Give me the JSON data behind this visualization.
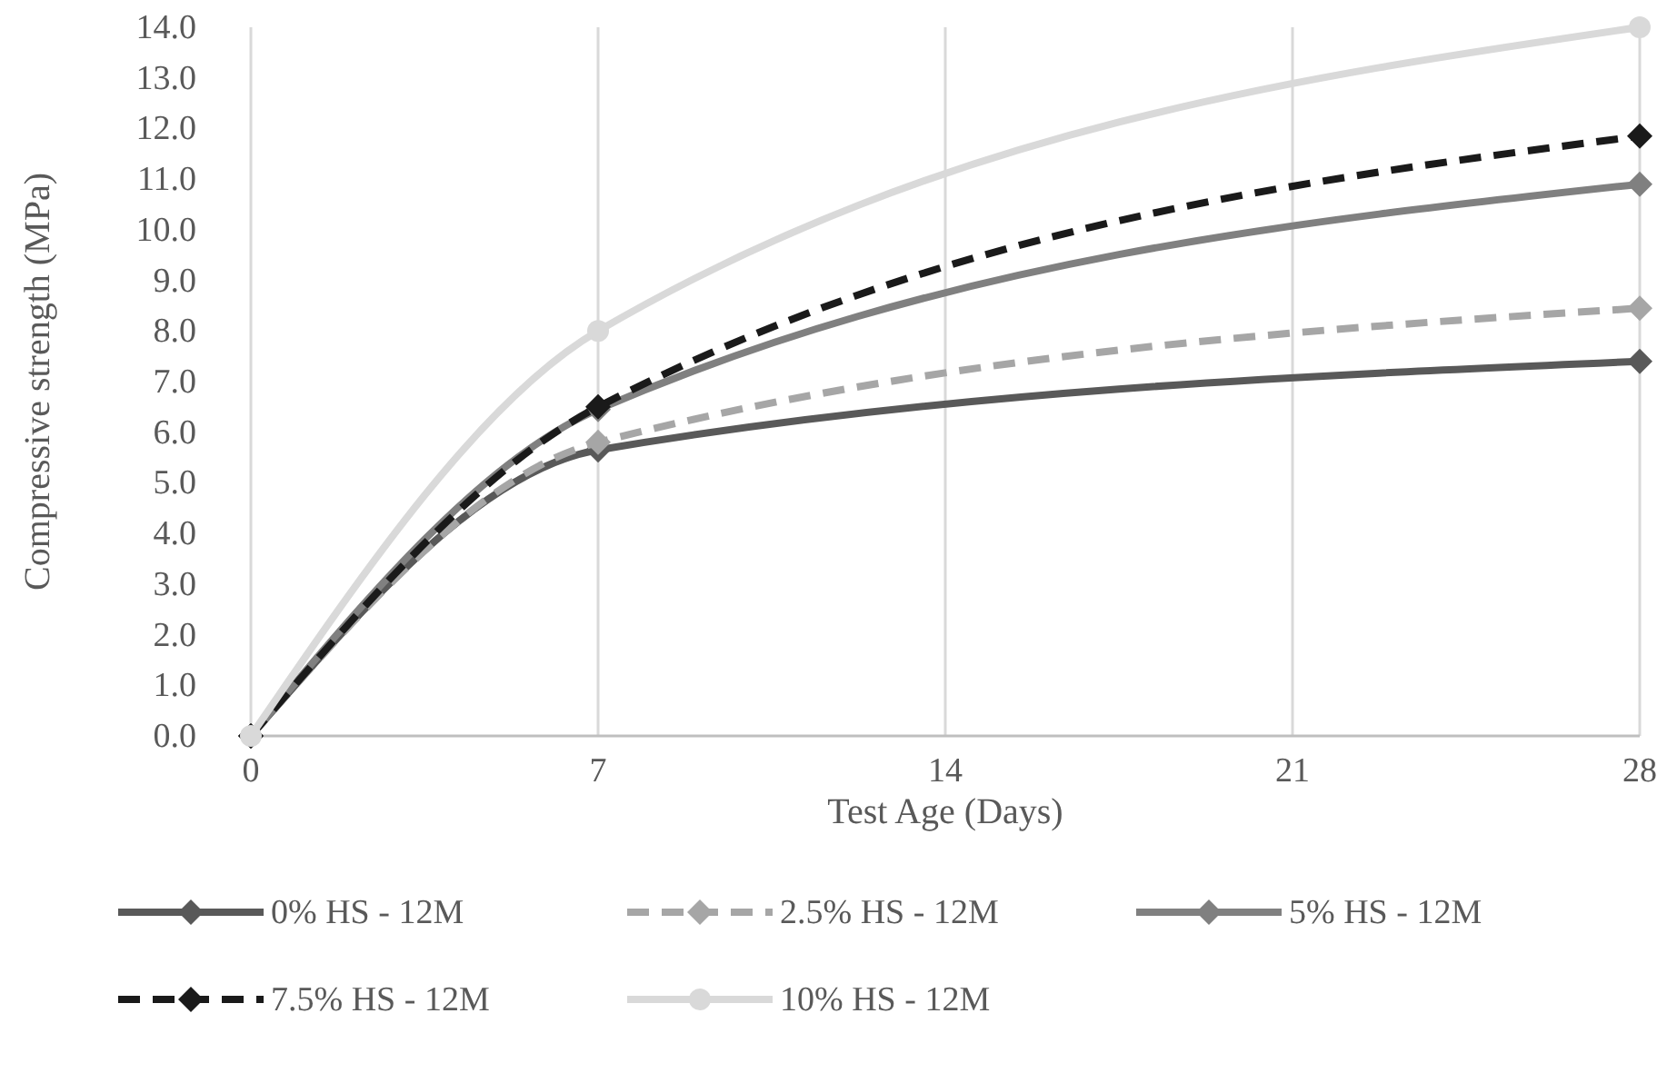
{
  "chart_data": {
    "type": "line",
    "xlabel": "Test Age (Days)",
    "ylabel": "Compressive strength (MPa)",
    "x": [
      0,
      7,
      28
    ],
    "xlim": [
      0,
      28
    ],
    "xticks": [
      0,
      7,
      14,
      21,
      28
    ],
    "ylim": [
      0,
      14
    ],
    "yticks": [
      {
        "value": 0,
        "label": "0.0"
      },
      {
        "value": 1,
        "label": "1.0"
      },
      {
        "value": 2,
        "label": "2.0"
      },
      {
        "value": 3,
        "label": "3.0"
      },
      {
        "value": 4,
        "label": "4.0"
      },
      {
        "value": 5,
        "label": "5.0"
      },
      {
        "value": 6,
        "label": "6.0"
      },
      {
        "value": 7,
        "label": "7.0"
      },
      {
        "value": 8,
        "label": "8.0"
      },
      {
        "value": 9,
        "label": "9.0"
      },
      {
        "value": 10,
        "label": "10.0"
      },
      {
        "value": 11,
        "label": "11.0"
      },
      {
        "value": 12,
        "label": "12.0"
      },
      {
        "value": 13,
        "label": "13.0"
      },
      {
        "value": 14,
        "label": "14.0"
      }
    ],
    "grid": "x",
    "legend": "bottom",
    "series": [
      {
        "name": "0% HS - 12M",
        "color": "#595959",
        "values": [
          0,
          5.65,
          7.4
        ],
        "marker": "diamond",
        "line_style": "solid"
      },
      {
        "name": "2.5% HS - 12M",
        "color": "#a6a6a6",
        "values": [
          0,
          5.8,
          8.45
        ],
        "marker": "diamond",
        "line_style": "dashed"
      },
      {
        "name": "5% HS - 12M",
        "color": "#808080",
        "values": [
          0,
          6.45,
          10.9
        ],
        "marker": "diamond",
        "line_style": "solid"
      },
      {
        "name": "7.5% HS - 12M",
        "color": "#1a1a1a",
        "values": [
          0,
          6.5,
          11.85
        ],
        "marker": "diamond",
        "line_style": "dashed"
      },
      {
        "name": "10% HS - 12M",
        "color": "#d9d9d9",
        "values": [
          0,
          8.0,
          14.0
        ],
        "marker": "circle",
        "line_style": "solid"
      }
    ]
  }
}
